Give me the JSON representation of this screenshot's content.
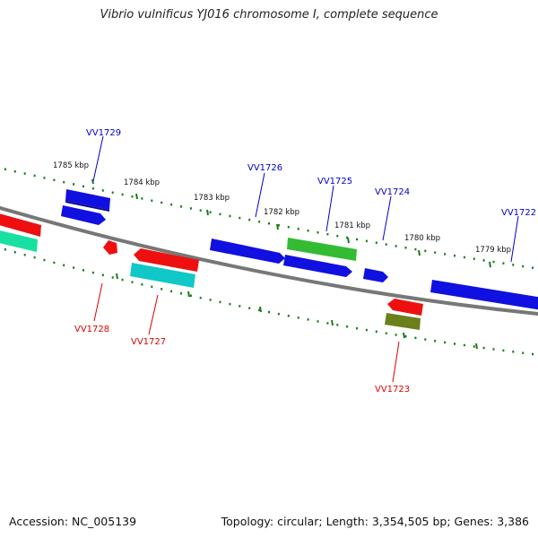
{
  "title": "Vibrio vulnificus YJ016 chromosome I, complete sequence",
  "footer": {
    "accession": "Accession: NC_005139",
    "topology": "Topology: circular; Length: 3,354,505 bp; Genes: 3,386"
  },
  "scale": {
    "ticks": [
      {
        "label": "1785 kbp",
        "kbp": 1785
      },
      {
        "label": "1784 kbp",
        "kbp": 1784
      },
      {
        "label": "1783 kbp",
        "kbp": 1783
      },
      {
        "label": "1782 kbp",
        "kbp": 1782
      },
      {
        "label": "1781 kbp",
        "kbp": 1781
      },
      {
        "label": "1780 kbp",
        "kbp": 1780
      },
      {
        "label": "1779 kbp",
        "kbp": 1779
      }
    ]
  },
  "colors": {
    "backbone": "#777777",
    "plus_strand_label": "#0000cc",
    "minus_strand_label": "#dd0000",
    "tick": "#1a7a1a",
    "blue_gene": "#1010e0",
    "red_gene": "#ee1010",
    "green_gene": "#33bb33",
    "cyan_gene": "#10c8c8",
    "teal_gene": "#18e0a0",
    "olive_gene": "#6b7f1a"
  },
  "gene_labels": [
    {
      "text": "VV1729",
      "strand": "plus"
    },
    {
      "text": "VV1726",
      "strand": "plus"
    },
    {
      "text": "VV1725",
      "strand": "plus"
    },
    {
      "text": "VV1724",
      "strand": "plus"
    },
    {
      "text": "VV1722",
      "strand": "plus"
    },
    {
      "text": "VV1728",
      "strand": "minus"
    },
    {
      "text": "VV1727",
      "strand": "minus"
    },
    {
      "text": "VV1723",
      "strand": "minus"
    }
  ]
}
